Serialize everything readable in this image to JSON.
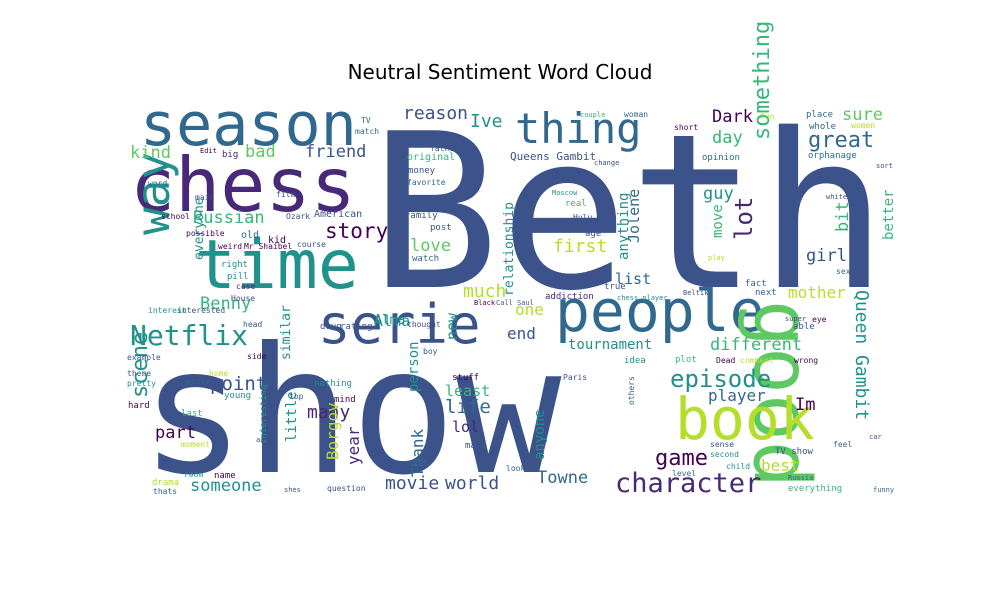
{
  "chart_data": {
    "type": "wordcloud",
    "title": "Neutral Sentiment Word Cloud",
    "words": [
      {
        "text": "Beth",
        "weight": 100,
        "color": "#3b528b"
      },
      {
        "text": "show",
        "weight": 95,
        "color": "#3b528b"
      },
      {
        "text": "chess",
        "weight": 50,
        "color": "#482878"
      },
      {
        "text": "time",
        "weight": 48,
        "color": "#21918c"
      },
      {
        "text": "season",
        "weight": 42,
        "color": "#31688e"
      },
      {
        "text": "people",
        "weight": 42,
        "color": "#31688e"
      },
      {
        "text": "good",
        "weight": 44,
        "color": "#5ec962"
      },
      {
        "text": "serie",
        "weight": 40,
        "color": "#3b528b"
      },
      {
        "text": "book",
        "weight": 40,
        "color": "#b5de2b"
      },
      {
        "text": "thing",
        "weight": 34,
        "color": "#31688e"
      },
      {
        "text": "way",
        "weight": 32,
        "color": "#21918c"
      },
      {
        "text": "Netflix",
        "weight": 26,
        "color": "#21918c"
      },
      {
        "text": "character",
        "weight": 24,
        "color": "#482878"
      },
      {
        "text": "episode",
        "weight": 22,
        "color": "#21918c"
      },
      {
        "text": "Queen Gambit",
        "weight": 18,
        "color": "#21918c"
      },
      {
        "text": "great",
        "weight": 18,
        "color": "#31688e"
      },
      {
        "text": "something",
        "weight": 18,
        "color": "#35b779"
      },
      {
        "text": "lot",
        "weight": 20,
        "color": "#482878"
      },
      {
        "text": "scene",
        "weight": 18,
        "color": "#21918c"
      },
      {
        "text": "game",
        "weight": 18,
        "color": "#440154"
      },
      {
        "text": "story",
        "weight": 18,
        "color": "#440154"
      },
      {
        "text": "Benny",
        "weight": 16,
        "color": "#35b779"
      },
      {
        "text": "Russian",
        "weight": 16,
        "color": "#35b779"
      },
      {
        "text": "point",
        "weight": 16,
        "color": "#3b528b"
      },
      {
        "text": "part",
        "weight": 16,
        "color": "#440154"
      },
      {
        "text": "many",
        "weight": 16,
        "color": "#482878"
      },
      {
        "text": "life",
        "weight": 16,
        "color": "#31688e"
      },
      {
        "text": "movie",
        "weight": 16,
        "color": "#3b528b"
      },
      {
        "text": "world",
        "weight": 16,
        "color": "#3b528b"
      },
      {
        "text": "Towne",
        "weight": 16,
        "color": "#31688e"
      },
      {
        "text": "someone",
        "weight": 16,
        "color": "#21918c"
      },
      {
        "text": "friend",
        "weight": 16,
        "color": "#3b528b"
      },
      {
        "text": "bad",
        "weight": 16,
        "color": "#5ec962"
      },
      {
        "text": "kind",
        "weight": 16,
        "color": "#5ec962"
      },
      {
        "text": "reason",
        "weight": 16,
        "color": "#3b528b"
      },
      {
        "text": "Ive",
        "weight": 16,
        "color": "#21918c"
      },
      {
        "text": "much",
        "weight": 16,
        "color": "#b5de2b"
      },
      {
        "text": "first",
        "weight": 16,
        "color": "#b5de2b"
      },
      {
        "text": "love",
        "weight": 16,
        "color": "#5ec962"
      },
      {
        "text": "Dark",
        "weight": 16,
        "color": "#440154"
      },
      {
        "text": "day",
        "weight": 16,
        "color": "#35b779"
      },
      {
        "text": "sure",
        "weight": 16,
        "color": "#5ec962"
      },
      {
        "text": "guy",
        "weight": 16,
        "color": "#21918c"
      },
      {
        "text": "girl",
        "weight": 16,
        "color": "#3b528b"
      },
      {
        "text": "bit",
        "weight": 16,
        "color": "#35b779"
      },
      {
        "text": "better",
        "weight": 14,
        "color": "#35b779"
      },
      {
        "text": "Jolene",
        "weight": 14,
        "color": "#31688e"
      },
      {
        "text": "move",
        "weight": 14,
        "color": "#35b779"
      },
      {
        "text": "anything",
        "weight": 14,
        "color": "#21918c"
      },
      {
        "text": "relationship",
        "weight": 13,
        "color": "#21918c"
      },
      {
        "text": "list",
        "weight": 14,
        "color": "#31688e"
      },
      {
        "text": "new",
        "weight": 14,
        "color": "#21918c"
      },
      {
        "text": "one",
        "weight": 14,
        "color": "#b5de2b"
      },
      {
        "text": "end",
        "weight": 14,
        "color": "#3b528b"
      },
      {
        "text": "Alma",
        "weight": 14,
        "color": "#21918c"
      },
      {
        "text": "mother",
        "weight": 14,
        "color": "#b5de2b"
      },
      {
        "text": "different",
        "weight": 14,
        "color": "#35b779"
      },
      {
        "text": "tournament",
        "weight": 13,
        "color": "#21918c"
      },
      {
        "text": "player",
        "weight": 14,
        "color": "#31688e"
      },
      {
        "text": "Im",
        "weight": 14,
        "color": "#440154"
      },
      {
        "text": "best",
        "weight": 14,
        "color": "#b5de2b"
      },
      {
        "text": "Borgov",
        "weight": 14,
        "color": "#b5de2b"
      },
      {
        "text": "year",
        "weight": 14,
        "color": "#482878"
      },
      {
        "text": "Thank",
        "weight": 14,
        "color": "#31688e"
      },
      {
        "text": "person",
        "weight": 14,
        "color": "#21918c"
      },
      {
        "text": "least",
        "weight": 14,
        "color": "#35b779"
      },
      {
        "text": "lol",
        "weight": 14,
        "color": "#482878"
      },
      {
        "text": "anyone",
        "weight": 13,
        "color": "#21918c"
      },
      {
        "text": "little",
        "weight": 13,
        "color": "#21918c"
      },
      {
        "text": "similar",
        "weight": 12,
        "color": "#21918c"
      },
      {
        "text": "everyone",
        "weight": 12,
        "color": "#21918c"
      },
      {
        "text": "Alma",
        "weight": 10,
        "color": "#21918c"
      },
      {
        "text": "American",
        "weight": 10,
        "color": "#3b528b"
      },
      {
        "text": "Queens Gambit",
        "weight": 10,
        "color": "#3b528b"
      },
      {
        "text": "original",
        "weight": 10,
        "color": "#35b779"
      },
      {
        "text": "money",
        "weight": 9,
        "color": "#3b528b"
      },
      {
        "text": "favorite",
        "weight": 8,
        "color": "#31688e"
      },
      {
        "text": "family",
        "weight": 9,
        "color": "#3b528b"
      },
      {
        "text": "post",
        "weight": 9,
        "color": "#3b528b"
      },
      {
        "text": "watch",
        "weight": 9,
        "color": "#31688e"
      },
      {
        "text": "age",
        "weight": 9,
        "color": "#3b528b"
      },
      {
        "text": "real",
        "weight": 9,
        "color": "#35b779"
      },
      {
        "text": "addiction",
        "weight": 9,
        "color": "#482878"
      },
      {
        "text": "drug",
        "weight": 9,
        "color": "#3b528b"
      },
      {
        "text": "rating",
        "weight": 9,
        "color": "#3b528b"
      },
      {
        "text": "true",
        "weight": 9,
        "color": "#3b528b"
      },
      {
        "text": "fact",
        "weight": 9,
        "color": "#31688e"
      },
      {
        "text": "next",
        "weight": 9,
        "color": "#31688e"
      },
      {
        "text": "able",
        "weight": 9,
        "color": "#3b528b"
      },
      {
        "text": "sex",
        "weight": 8,
        "color": "#31688e"
      },
      {
        "text": "opinion",
        "weight": 9,
        "color": "#31688e"
      },
      {
        "text": "orphanage",
        "weight": 9,
        "color": "#31688e"
      },
      {
        "text": "whole",
        "weight": 9,
        "color": "#31688e"
      },
      {
        "text": "place",
        "weight": 9,
        "color": "#31688e"
      },
      {
        "text": "women",
        "weight": 8,
        "color": "#b5de2b"
      },
      {
        "text": "woman",
        "weight": 8,
        "color": "#31688e"
      },
      {
        "text": "short",
        "weight": 8,
        "color": "#440154"
      },
      {
        "text": "fun",
        "weight": 8,
        "color": "#b5de2b"
      },
      {
        "text": "plot",
        "weight": 9,
        "color": "#35b779"
      },
      {
        "text": "idea",
        "weight": 9,
        "color": "#21918c"
      },
      {
        "text": "stuff",
        "weight": 9,
        "color": "#440154"
      },
      {
        "text": "others",
        "weight": 8,
        "color": "#31688e"
      },
      {
        "text": "comment",
        "weight": 8,
        "color": "#b5de2b"
      },
      {
        "text": "wrong",
        "weight": 8,
        "color": "#440154"
      },
      {
        "text": "Dead",
        "weight": 8,
        "color": "#440154"
      },
      {
        "text": "sense",
        "weight": 8,
        "color": "#3b528b"
      },
      {
        "text": "second",
        "weight": 8,
        "color": "#21918c"
      },
      {
        "text": "child",
        "weight": 8,
        "color": "#21918c"
      },
      {
        "text": "level",
        "weight": 8,
        "color": "#31688e"
      },
      {
        "text": "TV show",
        "weight": 9,
        "color": "#3b528b"
      },
      {
        "text": "Russia",
        "weight": 7,
        "color": "#31688e"
      },
      {
        "text": "everything",
        "weight": 9,
        "color": "#35b779"
      },
      {
        "text": "funny",
        "weight": 7,
        "color": "#31688e"
      },
      {
        "text": "feel",
        "weight": 8,
        "color": "#31688e"
      },
      {
        "text": "car",
        "weight": 7,
        "color": "#3b528b"
      },
      {
        "text": "eye",
        "weight": 8,
        "color": "#440154"
      },
      {
        "text": "look",
        "weight": 8,
        "color": "#31688e"
      },
      {
        "text": "man",
        "weight": 9,
        "color": "#3b528b"
      },
      {
        "text": "night",
        "weight": 7,
        "color": "#31688e"
      },
      {
        "text": "question",
        "weight": 8,
        "color": "#3b528b"
      },
      {
        "text": "mind",
        "weight": 9,
        "color": "#440154"
      },
      {
        "text": "nothing",
        "weight": 9,
        "color": "#21918c"
      },
      {
        "text": "shes",
        "weight": 7,
        "color": "#3b528b"
      },
      {
        "text": "young",
        "weight": 9,
        "color": "#21918c"
      },
      {
        "text": "interesting",
        "weight": 9,
        "color": "#21918c"
      },
      {
        "text": "name",
        "weight": 9,
        "color": "#440154"
      },
      {
        "text": "room",
        "weight": 8,
        "color": "#21918c"
      },
      {
        "text": "drama",
        "weight": 9,
        "color": "#b5de2b"
      },
      {
        "text": "thats",
        "weight": 8,
        "color": "#31688e"
      },
      {
        "text": "moment",
        "weight": 8,
        "color": "#b5de2b"
      },
      {
        "text": "last",
        "weight": 9,
        "color": "#35b779"
      },
      {
        "text": "hard",
        "weight": 9,
        "color": "#440154"
      },
      {
        "text": "pretty",
        "weight": 8,
        "color": "#21918c"
      },
      {
        "text": "theme",
        "weight": 8,
        "color": "#3b528b"
      },
      {
        "text": "example",
        "weight": 8,
        "color": "#3b528b"
      },
      {
        "text": "home",
        "weight": 8,
        "color": "#b5de2b"
      },
      {
        "text": "youre",
        "weight": 8,
        "color": "#31688e"
      },
      {
        "text": "side",
        "weight": 8,
        "color": "#440154"
      },
      {
        "text": "head",
        "weight": 8,
        "color": "#3b528b"
      },
      {
        "text": "House",
        "weight": 8,
        "color": "#3b528b"
      },
      {
        "text": "interested",
        "weight": 8,
        "color": "#3b528b"
      },
      {
        "text": "interest",
        "weight": 8,
        "color": "#21918c"
      },
      {
        "text": "right",
        "weight": 9,
        "color": "#21918c"
      },
      {
        "text": "pill",
        "weight": 9,
        "color": "#21918c"
      },
      {
        "text": "case",
        "weight": 8,
        "color": "#482878"
      },
      {
        "text": "old",
        "weight": 10,
        "color": "#31688e"
      },
      {
        "text": "kid",
        "weight": 10,
        "color": "#440154"
      },
      {
        "text": "weird",
        "weight": 8,
        "color": "#440154"
      },
      {
        "text": "Mr Shaibel",
        "weight": 8,
        "color": "#440154"
      },
      {
        "text": "possible",
        "weight": 8,
        "color": "#440154"
      },
      {
        "text": "school",
        "weight": 8,
        "color": "#440154"
      },
      {
        "text": "main",
        "weight": 8,
        "color": "#3b528b"
      },
      {
        "text": "film",
        "weight": 8,
        "color": "#3b528b"
      },
      {
        "text": "Ozark",
        "weight": 8,
        "color": "#3b528b"
      },
      {
        "text": "word",
        "weight": 8,
        "color": "#31688e"
      },
      {
        "text": "big",
        "weight": 9,
        "color": "#482878"
      },
      {
        "text": "Edit",
        "weight": 7,
        "color": "#440154"
      },
      {
        "text": "TV",
        "weight": 8,
        "color": "#31688e"
      },
      {
        "text": "match",
        "weight": 8,
        "color": "#31688e"
      },
      {
        "text": "course",
        "weight": 8,
        "color": "#3b528b"
      },
      {
        "text": "top",
        "weight": 8,
        "color": "#3b528b"
      },
      {
        "text": "father",
        "weight": 8,
        "color": "#3b528b"
      },
      {
        "text": "Hulu",
        "weight": 8,
        "color": "#3b528b"
      },
      {
        "text": "Moscow",
        "weight": 7,
        "color": "#21918c"
      },
      {
        "text": "chess player",
        "weight": 7,
        "color": "#21918c"
      },
      {
        "text": "Call Saul",
        "weight": 7,
        "color": "#3b528b"
      },
      {
        "text": "Black",
        "weight": 7,
        "color": "#440154"
      },
      {
        "text": "Beltik",
        "weight": 7,
        "color": "#3b528b"
      },
      {
        "text": "thought",
        "weight": 8,
        "color": "#3b528b"
      },
      {
        "text": "boy",
        "weight": 8,
        "color": "#3b528b"
      },
      {
        "text": "Paris",
        "weight": 8,
        "color": "#3b528b"
      },
      {
        "text": "actor",
        "weight": 7,
        "color": "#3b528b"
      },
      {
        "text": "couple",
        "weight": 7,
        "color": "#35b779"
      },
      {
        "text": "change",
        "weight": 7,
        "color": "#3b528b"
      },
      {
        "text": "sort",
        "weight": 7,
        "color": "#3b528b"
      },
      {
        "text": "white",
        "weight": 7,
        "color": "#3b528b"
      },
      {
        "text": "super",
        "weight": 7,
        "color": "#3b528b"
      },
      {
        "text": "play",
        "weight": 7,
        "color": "#b5de2b"
      }
    ]
  }
}
